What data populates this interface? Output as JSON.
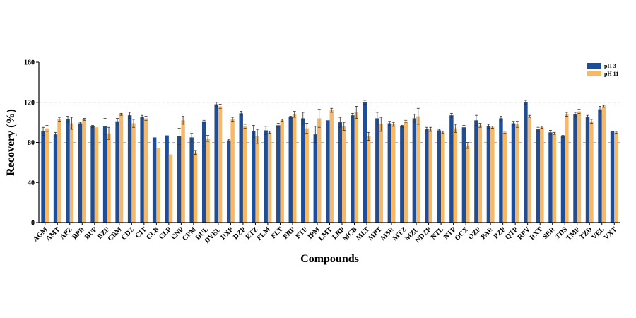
{
  "chart_data": {
    "type": "bar",
    "title": "",
    "xlabel": "Compounds",
    "ylabel": "Recovery (%)",
    "ylim": [
      0,
      160
    ],
    "yticks": [
      0,
      40,
      80,
      120,
      160
    ],
    "reference_lines": [
      80,
      120
    ],
    "legend_position": "top-right",
    "colors": {
      "pH 3": "#1f4e96",
      "pH 11": "#f7b868"
    },
    "categories": [
      "AGM",
      "AMT",
      "APZ",
      "BPR",
      "BUP",
      "BZP",
      "CBM",
      "CDZ",
      "CIT",
      "CLB",
      "CLP",
      "CNP",
      "CPM",
      "DUL",
      "DVEL",
      "DXP",
      "DZP",
      "ETZ",
      "FLM",
      "FLT",
      "FRP",
      "FTP",
      "IPM",
      "LMT",
      "LRP",
      "MCB",
      "MLT",
      "MPT",
      "MSR",
      "MTZ",
      "MZL",
      "NDZP",
      "NTL",
      "NTP",
      "OCX",
      "OZP",
      "PAR",
      "PZP",
      "QTP",
      "RPV",
      "RXT",
      "SER",
      "TDS",
      "TMP",
      "TZD",
      "VEL",
      "VXT"
    ],
    "series": [
      {
        "name": "pH 3",
        "values": [
          91,
          88,
          103,
          99,
          96,
          96,
          101,
          107,
          105,
          85,
          87,
          86,
          85,
          101,
          118,
          82,
          109,
          91,
          92,
          97,
          105,
          104,
          88,
          102,
          100,
          107,
          120,
          104,
          99,
          96,
          104,
          93,
          92,
          107,
          95,
          102,
          96,
          104,
          99,
          120,
          93,
          90,
          86,
          108,
          105,
          113,
          91
        ],
        "errors": [
          4,
          2,
          3,
          1,
          1,
          8,
          3,
          3,
          2,
          0,
          0,
          8,
          4,
          1,
          2,
          1,
          2,
          6,
          4,
          2,
          1,
          6,
          8,
          0,
          5,
          2,
          2,
          6,
          2,
          1,
          4,
          2,
          1,
          2,
          2,
          5,
          2,
          2,
          2,
          2,
          2,
          2,
          1,
          2,
          2,
          3,
          0
        ]
      },
      {
        "name": "pH 11",
        "values": [
          94,
          103,
          99,
          103,
          95,
          89,
          108,
          99,
          104,
          74,
          68,
          102,
          70,
          84,
          116,
          103,
          96,
          86,
          90,
          102,
          108,
          94,
          104,
          112,
          96,
          110,
          86,
          98,
          98,
          101,
          106,
          93,
          90,
          94,
          77,
          97,
          95,
          90,
          98,
          106,
          95,
          89,
          108,
          111,
          101,
          116,
          90
        ],
        "errors": [
          3,
          2,
          6,
          1,
          0,
          6,
          1,
          4,
          2,
          0,
          0,
          4,
          2,
          3,
          2,
          2,
          2,
          7,
          1,
          1,
          3,
          5,
          9,
          2,
          4,
          6,
          4,
          7,
          2,
          1,
          8,
          2,
          1,
          4,
          3,
          2,
          1,
          1,
          3,
          1,
          1,
          1,
          2,
          2,
          2,
          1,
          1
        ]
      }
    ]
  }
}
